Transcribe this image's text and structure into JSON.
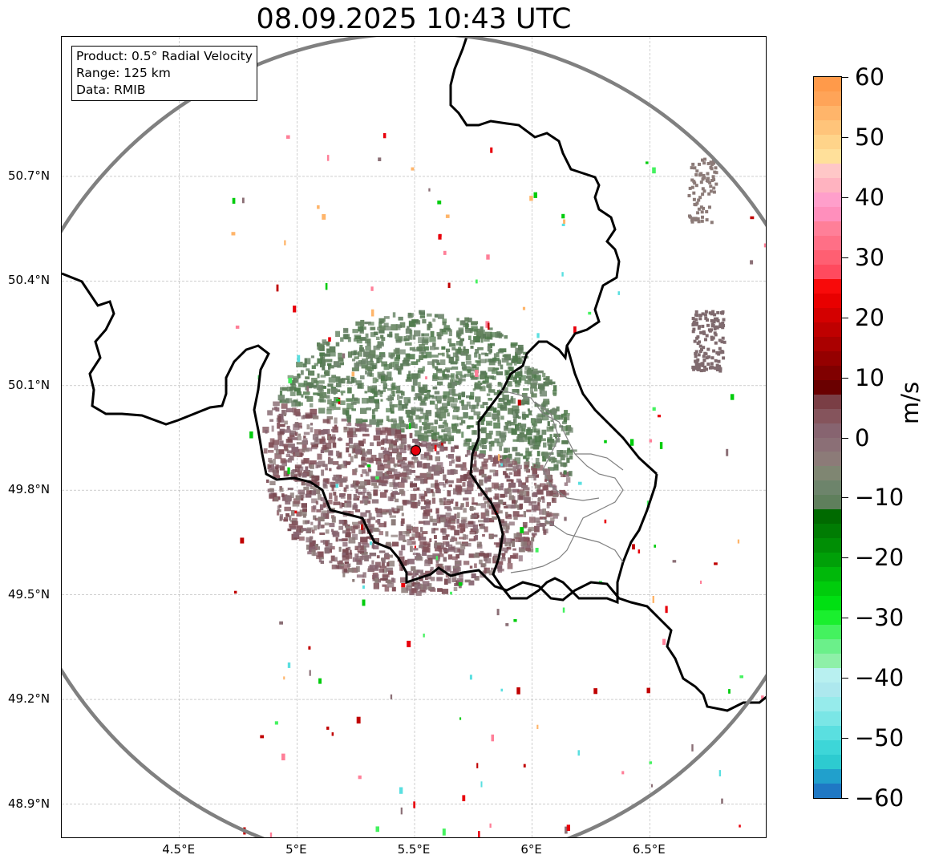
{
  "title": "08.09.2025 10:43 UTC",
  "info": {
    "product": "Product: 0.5° Radial Velocity",
    "range": "Range: 125 km",
    "data": "Data: RMIB"
  },
  "map": {
    "lon_range": [
      4.0,
      7.0
    ],
    "lat_range": [
      48.8,
      51.1
    ],
    "lat_ticks": [
      "50.7°N",
      "50.4°N",
      "50.1°N",
      "49.8°N",
      "49.5°N",
      "49.2°N",
      "48.9°N"
    ],
    "lat_values": [
      50.7,
      50.4,
      50.1,
      49.8,
      49.5,
      49.2,
      48.9
    ],
    "lon_ticks": [
      "4.5°E",
      "5°E",
      "5.5°E",
      "6°E",
      "6.5°E"
    ],
    "lon_values": [
      4.5,
      5.0,
      5.5,
      6.0,
      6.5
    ],
    "radar_site": {
      "lon": 5.505,
      "lat": 49.914
    },
    "range_ring_color": "#808080",
    "radar_marker_color": "#e8000b",
    "gridlines": true
  },
  "colorbar": {
    "unit": "m/s",
    "min": -60,
    "max": 60,
    "ticks": [
      "60",
      "50",
      "40",
      "30",
      "20",
      "10",
      "0",
      "−10",
      "−20",
      "−30",
      "−40",
      "−50",
      "−60"
    ],
    "tick_values": [
      60,
      50,
      40,
      30,
      20,
      10,
      0,
      -10,
      -20,
      -30,
      -40,
      -50,
      -60
    ],
    "colors": [
      "#1f78c4",
      "#21a0cc",
      "#2dcbd0",
      "#3dd6d8",
      "#5adfe0",
      "#7ae6e6",
      "#96ebeb",
      "#ade8ee",
      "#b8f0f0",
      "#8ef0a8",
      "#6bf08a",
      "#44f25f",
      "#1aef2e",
      "#00e012",
      "#00cc0c",
      "#00b80a",
      "#00a008",
      "#008e05",
      "#007c03",
      "#006a00",
      "#5f7f5c",
      "#6d846b",
      "#7f8672",
      "#8c7b78",
      "#8b6f76",
      "#876470",
      "#85545c",
      "#7a3e45",
      "#6a0000",
      "#800000",
      "#950000",
      "#aa0000",
      "#bf0000",
      "#d40000",
      "#e80000",
      "#f80a0a",
      "#ff4a5e",
      "#ff5f72",
      "#ff6f86",
      "#ff7f98",
      "#ff8fbc",
      "#ff9fcb",
      "#ffb3c0",
      "#ffc7c7",
      "#ffe09a",
      "#ffd48a",
      "#ffc47a",
      "#ffb56a",
      "#ffa458",
      "#ff9a4a"
    ]
  }
}
